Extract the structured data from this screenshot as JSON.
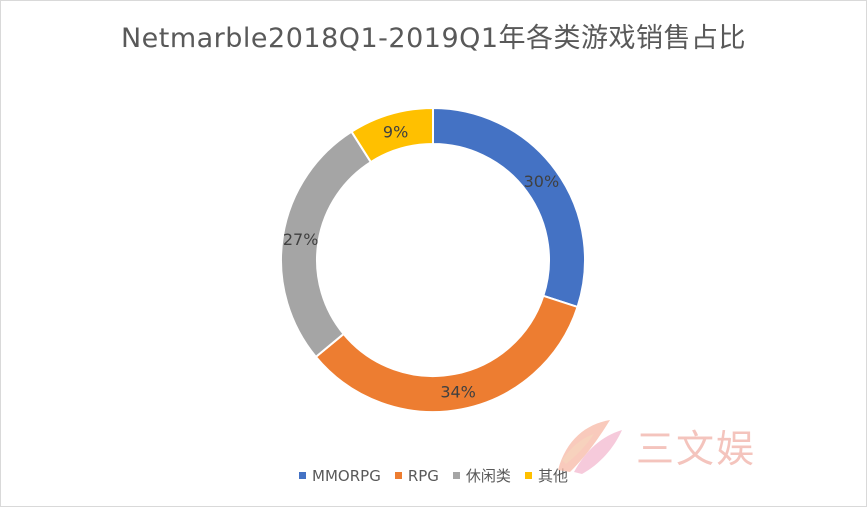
{
  "chart_data": {
    "type": "pie",
    "donut": true,
    "title": "Netmarble2018Q1-2019Q1年各类游戏销售占比",
    "categories": [
      "MMORPG",
      "RPG",
      "休闲类",
      "其他"
    ],
    "values": [
      30,
      34,
      27,
      9
    ],
    "labels": [
      "30%",
      "34%",
      "27%",
      "9%"
    ],
    "colors": [
      "#4472c4",
      "#ed7d31",
      "#a5a5a5",
      "#ffc000"
    ],
    "legend_position": "bottom",
    "start_angle": "top, clockwise"
  },
  "watermark": {
    "text": "三文娱",
    "colors": [
      "#f7b8a6",
      "#f0a6c3",
      "#f6d3bd"
    ]
  }
}
